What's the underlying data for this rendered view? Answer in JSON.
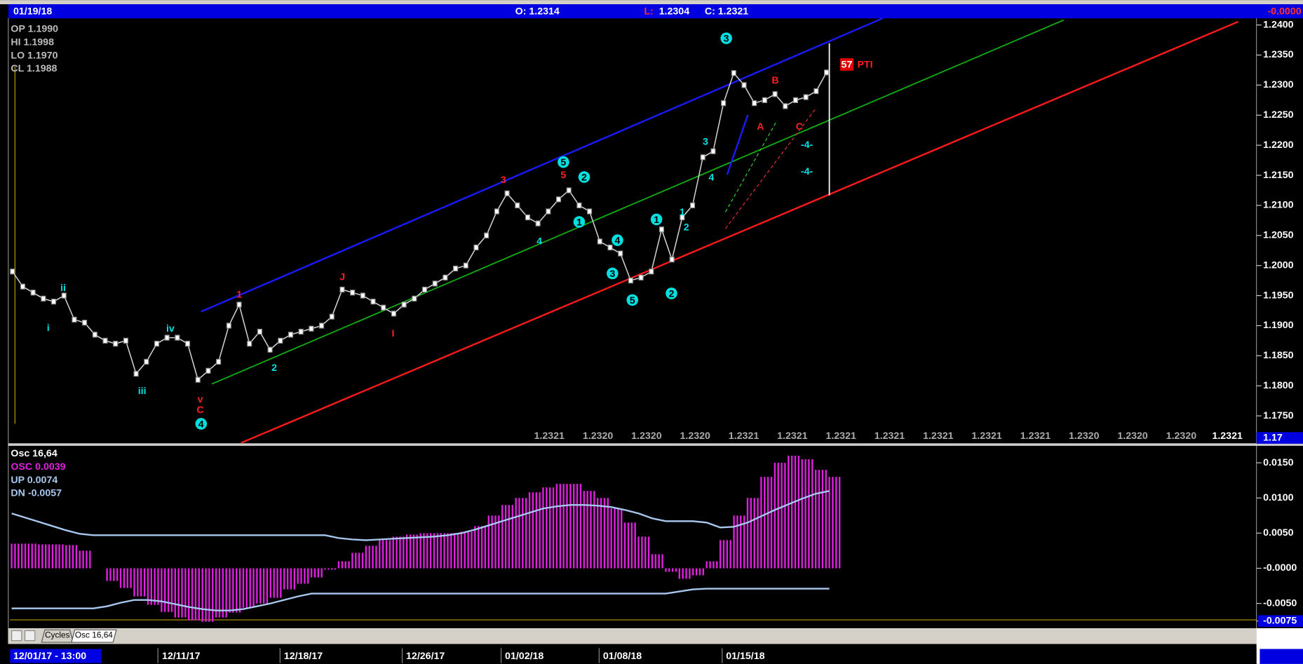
{
  "toolbar": {
    "date": "01/19/18",
    "open": "O: 1.2314",
    "low_label": "L:",
    "low": "1.2304",
    "close": "C: 1.2321",
    "change": "-0.0000"
  },
  "ohlc_legend": [
    "OP 1.1990",
    "HI  1.1998",
    "LO  1.1970",
    "CL  1.1988"
  ],
  "price_row": [
    "1.2321",
    "1.2320",
    "1.2320",
    "1.2320",
    "1.2321",
    "1.2321",
    "1.2321",
    "1.2321",
    "1.2321",
    "1.2321",
    "1.2321",
    "1.2320",
    "1.2320",
    "1.2320"
  ],
  "price_last": "1.2321",
  "axis_box_label": "1.17",
  "annotations": [
    "ii",
    "i",
    "iii",
    "iv",
    "v",
    "C",
    "1",
    "J",
    "I",
    "2",
    "3",
    "5",
    "4",
    "3",
    "4",
    "1",
    "2",
    "A",
    "B",
    "C",
    "-4-",
    "-4-",
    "PTI"
  ],
  "wave_circles": [
    "4",
    "5",
    "2",
    "1",
    "1",
    "4",
    "3",
    "5",
    "2",
    "3"
  ],
  "pti_count": "57",
  "osc_legend": [
    "Osc 16,64",
    "OSC 0.0039",
    "UP  0.0074",
    "DN  -0.0057"
  ],
  "tabs": [
    "Cycles",
    "Osc 16,64"
  ],
  "date_axis": {
    "start": "12/01/17 - 13:00",
    "labels": [
      "12/11/17",
      "12/18/17",
      "12/26/17",
      "01/02/18",
      "01/08/18",
      "01/15/18"
    ]
  },
  "chart_data": [
    {
      "type": "line",
      "color": "#d0d0d0",
      "ylim": [
        1.1705,
        1.2411
      ],
      "yticks": [
        {
          "value": 1.24,
          "label": "1.2400"
        },
        {
          "value": 1.235,
          "label": "1.2350"
        },
        {
          "value": 1.23,
          "label": "1.2300"
        },
        {
          "value": 1.225,
          "label": "1.2250"
        },
        {
          "value": 1.22,
          "label": "1.2200"
        },
        {
          "value": 1.215,
          "label": "1.2150"
        },
        {
          "value": 1.21,
          "label": "1.2100"
        },
        {
          "value": 1.205,
          "label": "1.2050"
        },
        {
          "value": 1.2,
          "label": "1.2000"
        },
        {
          "value": 1.195,
          "label": "1.1950"
        },
        {
          "value": 1.19,
          "label": "1.1900"
        },
        {
          "value": 1.185,
          "label": "1.1850"
        },
        {
          "value": 1.18,
          "label": "1.1800"
        },
        {
          "value": 1.175,
          "label": "1.1750"
        }
      ],
      "values": [
        1.199,
        1.1965,
        1.1955,
        1.1945,
        1.194,
        1.195,
        1.191,
        1.1905,
        1.1885,
        1.1875,
        1.187,
        1.1875,
        1.182,
        1.184,
        1.187,
        1.188,
        1.188,
        1.187,
        1.181,
        1.1825,
        1.184,
        1.19,
        1.1935,
        1.187,
        1.189,
        1.186,
        1.1875,
        1.1885,
        1.189,
        1.1895,
        1.19,
        1.1915,
        1.196,
        1.1955,
        1.195,
        1.194,
        1.193,
        1.192,
        1.1935,
        1.1945,
        1.196,
        1.197,
        1.198,
        1.1995,
        1.2,
        1.203,
        1.205,
        1.209,
        1.212,
        1.21,
        1.208,
        1.207,
        1.209,
        1.211,
        1.2125,
        1.21,
        1.209,
        1.204,
        1.203,
        1.202,
        1.1975,
        1.198,
        1.199,
        1.206,
        1.201,
        1.208,
        1.21,
        1.218,
        1.219,
        1.227,
        1.232,
        1.23,
        1.227,
        1.2275,
        1.2285,
        1.2265,
        1.2275,
        1.228,
        1.229,
        1.2321
      ]
    },
    {
      "type": "bar",
      "color": "#e020e0",
      "ylim": [
        -0.0084,
        0.017
      ],
      "yticks": [
        {
          "value": 0.015,
          "label": "0.0150"
        },
        {
          "value": 0.01,
          "label": "0.0100"
        },
        {
          "value": 0.005,
          "label": "0.0050"
        },
        {
          "value": 0,
          "label": "-0.0000"
        },
        {
          "value": -0.005,
          "label": "-0.0050"
        },
        {
          "value": -0.0075,
          "label": "-0.0075"
        }
      ],
      "series": [
        {
          "name": "OSC",
          "color": "#e020e0",
          "values": [
            0.0035,
            0.0035,
            0.0034,
            0.0034,
            0.0033,
            0.0025,
            0,
            -0.0018,
            -0.0028,
            -0.004,
            -0.0052,
            -0.0062,
            -0.007,
            -0.0074,
            -0.0076,
            -0.007,
            -0.0063,
            -0.0056,
            -0.005,
            -0.0042,
            -0.003,
            -0.0022,
            -0.0013,
            -0.0002,
            0.001,
            0.0022,
            0.0032,
            0.004,
            0.0045,
            0.0048,
            0.005,
            0.005,
            0.005,
            0.0052,
            0.006,
            0.0075,
            0.009,
            0.01,
            0.0108,
            0.0115,
            0.012,
            0.012,
            0.011,
            0.01,
            0.0085,
            0.0065,
            0.0045,
            0.002,
            -0.0005,
            -0.0015,
            -0.001,
            0.001,
            0.004,
            0.0075,
            0.01,
            0.013,
            0.015,
            0.016,
            0.0155,
            0.014,
            0.013
          ]
        },
        {
          "name": "UP",
          "color": "#a8c8f0",
          "values": [
            0.0078,
            0.0072,
            0.0066,
            0.006,
            0.0054,
            0.0049,
            0.0047,
            0.0047,
            0.0047,
            0.0047,
            0.0047,
            0.0047,
            0.0047,
            0.0047,
            0.0047,
            0.0047,
            0.0047,
            0.0047,
            0.0047,
            0.0047,
            0.0047,
            0.0047,
            0.0047,
            0.0047,
            0.0043,
            0.0041,
            0.004,
            0.0041,
            0.0042,
            0.0043,
            0.0044,
            0.0045,
            0.0047,
            0.005,
            0.0055,
            0.0061,
            0.0067,
            0.0073,
            0.0079,
            0.0085,
            0.0088,
            0.009,
            0.009,
            0.0089,
            0.0087,
            0.0083,
            0.0078,
            0.0071,
            0.0067,
            0.0067,
            0.0067,
            0.0065,
            0.0058,
            0.0059,
            0.0065,
            0.0074,
            0.0083,
            0.0091,
            0.0099,
            0.0106,
            0.011
          ]
        },
        {
          "name": "DN",
          "color": "#a8c8f0",
          "values": [
            -0.0057,
            -0.0057,
            -0.0057,
            -0.0057,
            -0.0057,
            -0.0057,
            -0.0057,
            -0.0054,
            -0.0049,
            -0.0045,
            -0.0045,
            -0.0047,
            -0.0051,
            -0.0055,
            -0.0058,
            -0.006,
            -0.006,
            -0.0058,
            -0.0054,
            -0.005,
            -0.0045,
            -0.004,
            -0.0036,
            -0.0036,
            -0.0036,
            -0.0036,
            -0.0036,
            -0.0036,
            -0.0036,
            -0.0036,
            -0.0036,
            -0.0036,
            -0.0036,
            -0.0036,
            -0.0036,
            -0.0036,
            -0.0036,
            -0.0036,
            -0.0036,
            -0.0036,
            -0.0036,
            -0.0036,
            -0.0036,
            -0.0036,
            -0.0036,
            -0.0036,
            -0.0036,
            -0.0036,
            -0.0036,
            -0.0033,
            -0.003,
            -0.0029,
            -0.0029,
            -0.0029,
            -0.0029,
            -0.0029,
            -0.0029,
            -0.0029,
            -0.0029,
            -0.0029,
            -0.0029
          ]
        }
      ]
    }
  ]
}
